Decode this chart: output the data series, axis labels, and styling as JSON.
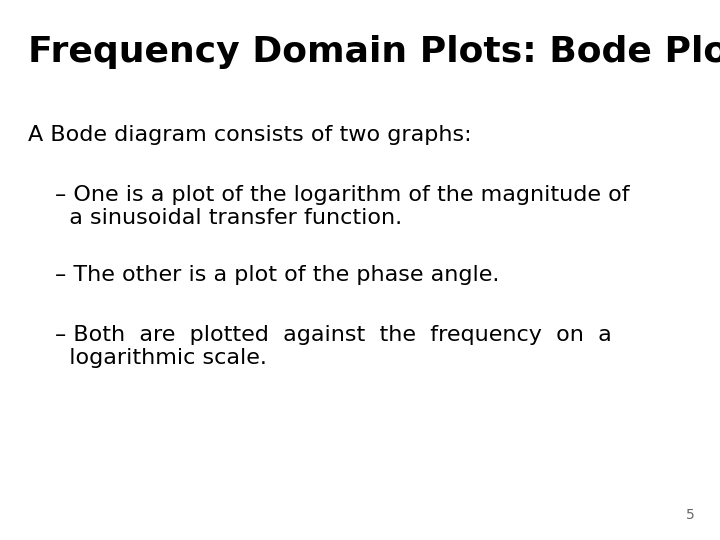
{
  "title": "Frequency Domain Plots: Bode Plot",
  "background_color": "#ffffff",
  "text_color": "#000000",
  "title_fontsize": 26,
  "body_fontsize": 16,
  "slide_number": "5",
  "intro_line": "A Bode diagram consists of two graphs:",
  "bullet1_line1": "– One is a plot of the logarithm of the magnitude of",
  "bullet1_line2": "  a sinusoidal transfer function.",
  "bullet2": "– The other is a plot of the phase angle.",
  "bullet3_line1": "– Both  are  plotted  against  the  frequency  on  a",
  "bullet3_line2": "  logarithmic scale."
}
